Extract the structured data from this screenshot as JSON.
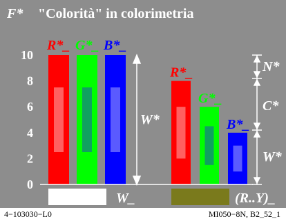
{
  "title": {
    "prefix": "F*",
    "text": "\"Colorità\" in colorimetria"
  },
  "y_axis": {
    "ticks": [
      "0",
      "2",
      "4",
      "6",
      "8",
      "10"
    ]
  },
  "left_group": {
    "labels": [
      "R*_",
      "G*_",
      "B*_"
    ],
    "bar_values": [
      10,
      10,
      10
    ],
    "inner_ranges": [
      [
        2.5,
        7.5
      ],
      [
        2.5,
        7.5
      ],
      [
        2.5,
        7.5
      ]
    ],
    "span_label": "W*",
    "base_label": "W_"
  },
  "right_group": {
    "labels": [
      "R*_",
      "G*_",
      "B*_"
    ],
    "bar_values": [
      8,
      6,
      4
    ],
    "inner_ranges": [
      [
        2,
        6
      ],
      [
        1.5,
        4.5
      ],
      [
        1,
        3
      ]
    ],
    "segment_labels": [
      "N*",
      "C*",
      "W*"
    ],
    "base_label": "(R..Y)_"
  },
  "colors": {
    "panel": "#8d8d8d",
    "title": "#ffffff",
    "red": "#ff0000",
    "green": "#00ff00",
    "blue": "#0000ff",
    "inner_red": "#ff6060",
    "inner_green": "#10a060",
    "inner_blue": "#5a5aff",
    "white_swatch": "#ffffff",
    "olive_swatch": "#7a7a1c"
  },
  "footer": {
    "left": "4−103030−L0",
    "right": "MI050−8N, B2_52_1"
  }
}
